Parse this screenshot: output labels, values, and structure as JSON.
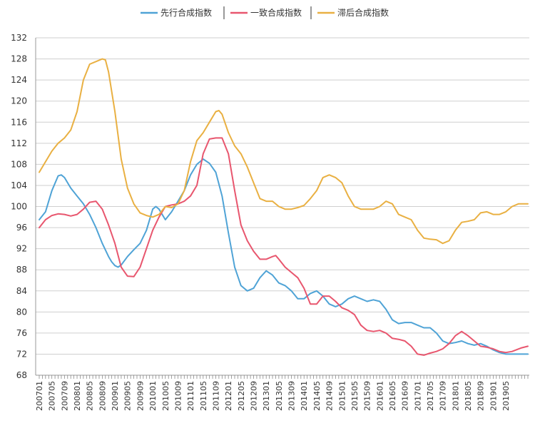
{
  "chart_data": {
    "type": "line",
    "title": "",
    "xlabel": "",
    "ylabel": "",
    "ylim": [
      68,
      132
    ],
    "y_ticks": [
      68,
      72,
      76,
      80,
      84,
      88,
      92,
      96,
      100,
      104,
      108,
      112,
      116,
      120,
      124,
      128,
      132
    ],
    "grid": "horizontal",
    "legend_position": "top-center",
    "x_tick_labels": [
      "200701",
      "200705",
      "200709",
      "200801",
      "200805",
      "200809",
      "200901",
      "200905",
      "200909",
      "201001",
      "201005",
      "201009",
      "201101",
      "201105",
      "201109",
      "201201",
      "201205",
      "201209",
      "201301",
      "201305",
      "201309",
      "201401",
      "201405",
      "201409",
      "201501",
      "201505",
      "201509",
      "201601",
      "201605",
      "201609",
      "201701",
      "201705",
      "201709",
      "201801",
      "201805",
      "201809",
      "201901",
      "201905"
    ],
    "x_start": "200701",
    "x_end": "201912",
    "series": [
      {
        "name": "先行合成指数",
        "color": "#4fa3d6",
        "points": [
          [
            "200701",
            97.5
          ],
          [
            "200703",
            99.0
          ],
          [
            "200705",
            103.0
          ],
          [
            "200707",
            105.8
          ],
          [
            "200708",
            106.0
          ],
          [
            "200709",
            105.5
          ],
          [
            "200711",
            103.5
          ],
          [
            "200801",
            102.0
          ],
          [
            "200803",
            100.5
          ],
          [
            "200805",
            98.5
          ],
          [
            "200807",
            96.0
          ],
          [
            "200809",
            93.0
          ],
          [
            "200811",
            90.5
          ],
          [
            "200812",
            89.5
          ],
          [
            "200901",
            88.8
          ],
          [
            "200902",
            88.5
          ],
          [
            "200903",
            88.9
          ],
          [
            "200905",
            90.5
          ],
          [
            "200907",
            91.8
          ],
          [
            "200909",
            93.0
          ],
          [
            "200911",
            95.5
          ],
          [
            "201001",
            99.5
          ],
          [
            "201002",
            100.0
          ],
          [
            "201003",
            99.5
          ],
          [
            "201005",
            97.5
          ],
          [
            "201007",
            99.0
          ],
          [
            "201009",
            101.0
          ],
          [
            "201011",
            103.0
          ],
          [
            "201101",
            106.0
          ],
          [
            "201103",
            108.0
          ],
          [
            "201105",
            109.0
          ],
          [
            "201107",
            108.2
          ],
          [
            "201109",
            106.5
          ],
          [
            "201111",
            102.0
          ],
          [
            "201201",
            95.0
          ],
          [
            "201203",
            88.5
          ],
          [
            "201205",
            85.0
          ],
          [
            "201207",
            84.0
          ],
          [
            "201209",
            84.5
          ],
          [
            "201211",
            86.5
          ],
          [
            "201301",
            87.8
          ],
          [
            "201303",
            87.0
          ],
          [
            "201305",
            85.5
          ],
          [
            "201307",
            85.0
          ],
          [
            "201309",
            84.0
          ],
          [
            "201311",
            82.5
          ],
          [
            "201401",
            82.5
          ],
          [
            "201403",
            83.5
          ],
          [
            "201405",
            84.0
          ],
          [
            "201407",
            83.0
          ],
          [
            "201409",
            81.5
          ],
          [
            "201411",
            81.0
          ],
          [
            "201501",
            81.5
          ],
          [
            "201503",
            82.5
          ],
          [
            "201505",
            83.0
          ],
          [
            "201507",
            82.5
          ],
          [
            "201509",
            82.0
          ],
          [
            "201511",
            82.3
          ],
          [
            "201601",
            82.0
          ],
          [
            "201603",
            80.5
          ],
          [
            "201605",
            78.5
          ],
          [
            "201607",
            77.8
          ],
          [
            "201609",
            78.0
          ],
          [
            "201611",
            78.0
          ],
          [
            "201701",
            77.5
          ],
          [
            "201703",
            77.0
          ],
          [
            "201705",
            77.0
          ],
          [
            "201707",
            76.0
          ],
          [
            "201709",
            74.5
          ],
          [
            "201711",
            74.0
          ],
          [
            "201801",
            74.2
          ],
          [
            "201803",
            74.5
          ],
          [
            "201805",
            74.0
          ],
          [
            "201807",
            73.7
          ],
          [
            "201809",
            74.0
          ],
          [
            "201811",
            73.5
          ],
          [
            "201901",
            72.8
          ],
          [
            "201903",
            72.3
          ],
          [
            "201905",
            72.0
          ],
          [
            "201907",
            72.0
          ],
          [
            "201912",
            72.0
          ]
        ]
      },
      {
        "name": "一致合成指数",
        "color": "#e8566e",
        "points": [
          [
            "200701",
            96.0
          ],
          [
            "200703",
            97.5
          ],
          [
            "200705",
            98.3
          ],
          [
            "200707",
            98.6
          ],
          [
            "200709",
            98.5
          ],
          [
            "200711",
            98.2
          ],
          [
            "200801",
            98.5
          ],
          [
            "200803",
            99.5
          ],
          [
            "200805",
            100.8
          ],
          [
            "200807",
            101.0
          ],
          [
            "200809",
            99.5
          ],
          [
            "200811",
            96.5
          ],
          [
            "200901",
            93.0
          ],
          [
            "200903",
            88.5
          ],
          [
            "200905",
            86.8
          ],
          [
            "200907",
            86.7
          ],
          [
            "200909",
            88.5
          ],
          [
            "200911",
            92.0
          ],
          [
            "201001",
            95.5
          ],
          [
            "201003",
            98.0
          ],
          [
            "201005",
            100.0
          ],
          [
            "201007",
            100.3
          ],
          [
            "201009",
            100.5
          ],
          [
            "201011",
            101.0
          ],
          [
            "201101",
            102.0
          ],
          [
            "201103",
            104.0
          ],
          [
            "201105",
            110.0
          ],
          [
            "201107",
            112.8
          ],
          [
            "201109",
            113.0
          ],
          [
            "201111",
            113.0
          ],
          [
            "201201",
            110.0
          ],
          [
            "201203",
            103.0
          ],
          [
            "201205",
            96.5
          ],
          [
            "201207",
            93.5
          ],
          [
            "201209",
            91.5
          ],
          [
            "201211",
            90.0
          ],
          [
            "201301",
            90.0
          ],
          [
            "201303",
            90.5
          ],
          [
            "201304",
            90.7
          ],
          [
            "201305",
            90.0
          ],
          [
            "201307",
            88.5
          ],
          [
            "201309",
            87.5
          ],
          [
            "201311",
            86.5
          ],
          [
            "201401",
            84.5
          ],
          [
            "201403",
            81.5
          ],
          [
            "201405",
            81.5
          ],
          [
            "201407",
            83.0
          ],
          [
            "201409",
            83.0
          ],
          [
            "201411",
            82.0
          ],
          [
            "201501",
            80.8
          ],
          [
            "201503",
            80.3
          ],
          [
            "201505",
            79.5
          ],
          [
            "201507",
            77.5
          ],
          [
            "201509",
            76.5
          ],
          [
            "201511",
            76.3
          ],
          [
            "201601",
            76.5
          ],
          [
            "201603",
            76.0
          ],
          [
            "201605",
            75.0
          ],
          [
            "201607",
            74.8
          ],
          [
            "201609",
            74.5
          ],
          [
            "201611",
            73.5
          ],
          [
            "201701",
            72.0
          ],
          [
            "201703",
            71.8
          ],
          [
            "201705",
            72.2
          ],
          [
            "201707",
            72.5
          ],
          [
            "201709",
            73.0
          ],
          [
            "201711",
            74.0
          ],
          [
            "201801",
            75.5
          ],
          [
            "201803",
            76.3
          ],
          [
            "201805",
            75.5
          ],
          [
            "201807",
            74.5
          ],
          [
            "201809",
            73.5
          ],
          [
            "201811",
            73.3
          ],
          [
            "201901",
            73.0
          ],
          [
            "201903",
            72.5
          ],
          [
            "201905",
            72.3
          ],
          [
            "201907",
            72.5
          ],
          [
            "201910",
            73.2
          ],
          [
            "201912",
            73.5
          ]
        ]
      },
      {
        "name": "滞后合成指数",
        "color": "#e9b042",
        "points": [
          [
            "200701",
            106.5
          ],
          [
            "200703",
            108.5
          ],
          [
            "200705",
            110.5
          ],
          [
            "200707",
            112.0
          ],
          [
            "200709",
            113.0
          ],
          [
            "200711",
            114.5
          ],
          [
            "200801",
            118.0
          ],
          [
            "200803",
            124.0
          ],
          [
            "200805",
            127.0
          ],
          [
            "200807",
            127.5
          ],
          [
            "200809",
            128.0
          ],
          [
            "200810",
            127.8
          ],
          [
            "200811",
            125.5
          ],
          [
            "200901",
            118.0
          ],
          [
            "200903",
            109.0
          ],
          [
            "200905",
            103.5
          ],
          [
            "200907",
            100.5
          ],
          [
            "200909",
            98.8
          ],
          [
            "200911",
            98.3
          ],
          [
            "201001",
            98.0
          ],
          [
            "201003",
            98.5
          ],
          [
            "201005",
            100.0
          ],
          [
            "201007",
            99.8
          ],
          [
            "201009",
            100.5
          ],
          [
            "201011",
            103.0
          ],
          [
            "201101",
            108.5
          ],
          [
            "201103",
            112.5
          ],
          [
            "201105",
            114.0
          ],
          [
            "201107",
            116.0
          ],
          [
            "201109",
            118.0
          ],
          [
            "201110",
            118.2
          ],
          [
            "201111",
            117.5
          ],
          [
            "201201",
            114.0
          ],
          [
            "201203",
            111.5
          ],
          [
            "201205",
            110.0
          ],
          [
            "201207",
            107.5
          ],
          [
            "201209",
            104.5
          ],
          [
            "201211",
            101.5
          ],
          [
            "201301",
            101.0
          ],
          [
            "201303",
            101.0
          ],
          [
            "201305",
            100.0
          ],
          [
            "201307",
            99.5
          ],
          [
            "201309",
            99.5
          ],
          [
            "201311",
            99.8
          ],
          [
            "201401",
            100.2
          ],
          [
            "201403",
            101.5
          ],
          [
            "201405",
            103.0
          ],
          [
            "201407",
            105.5
          ],
          [
            "201409",
            106.0
          ],
          [
            "201411",
            105.5
          ],
          [
            "201501",
            104.5
          ],
          [
            "201503",
            102.0
          ],
          [
            "201505",
            100.0
          ],
          [
            "201507",
            99.5
          ],
          [
            "201509",
            99.5
          ],
          [
            "201511",
            99.5
          ],
          [
            "201601",
            100.0
          ],
          [
            "201603",
            101.0
          ],
          [
            "201605",
            100.5
          ],
          [
            "201607",
            98.5
          ],
          [
            "201609",
            98.0
          ],
          [
            "201611",
            97.5
          ],
          [
            "201701",
            95.5
          ],
          [
            "201703",
            94.0
          ],
          [
            "201705",
            93.8
          ],
          [
            "201707",
            93.7
          ],
          [
            "201709",
            93.0
          ],
          [
            "201711",
            93.5
          ],
          [
            "201801",
            95.5
          ],
          [
            "201803",
            97.0
          ],
          [
            "201805",
            97.2
          ],
          [
            "201807",
            97.5
          ],
          [
            "201809",
            98.8
          ],
          [
            "201811",
            99.0
          ],
          [
            "201901",
            98.5
          ],
          [
            "201903",
            98.5
          ],
          [
            "201905",
            99.0
          ],
          [
            "201907",
            100.0
          ],
          [
            "201909",
            100.5
          ],
          [
            "201912",
            100.5
          ]
        ]
      }
    ]
  }
}
